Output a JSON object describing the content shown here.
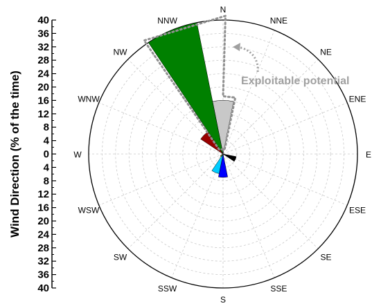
{
  "chart_data": {
    "type": "polar-bar",
    "ylabel": "Wind Direction (% of the time)",
    "radial_range": [
      0,
      40
    ],
    "radial_ticks": [
      40,
      36,
      32,
      28,
      24,
      20,
      16,
      12,
      8,
      4,
      0,
      4,
      8,
      12,
      16,
      20,
      24,
      28,
      32,
      36,
      40
    ],
    "directions": [
      "N",
      "NNE",
      "NE",
      "ENE",
      "E",
      "ESE",
      "SE",
      "SSE",
      "S",
      "SSW",
      "SW",
      "WSW",
      "W",
      "WNW",
      "NW",
      "NNW"
    ],
    "sectors": [
      {
        "direction": "N",
        "value": 16,
        "color": "#c8c8c8"
      },
      {
        "direction": "ESE",
        "value": 4,
        "color": "#000000"
      },
      {
        "direction": "S",
        "value": 7,
        "color": "#0000ff"
      },
      {
        "direction": "SSW",
        "value": 6,
        "color": "#00ccff"
      },
      {
        "direction": "SW",
        "value": 1,
        "color": "#808000"
      },
      {
        "direction": "NW",
        "value": 8,
        "color": "#990000"
      },
      {
        "direction": "NNW",
        "value": 40,
        "color": "#008000"
      }
    ],
    "grid": true,
    "annotation": {
      "text": "Exploitable potential",
      "color": "#a0a0a0"
    }
  }
}
